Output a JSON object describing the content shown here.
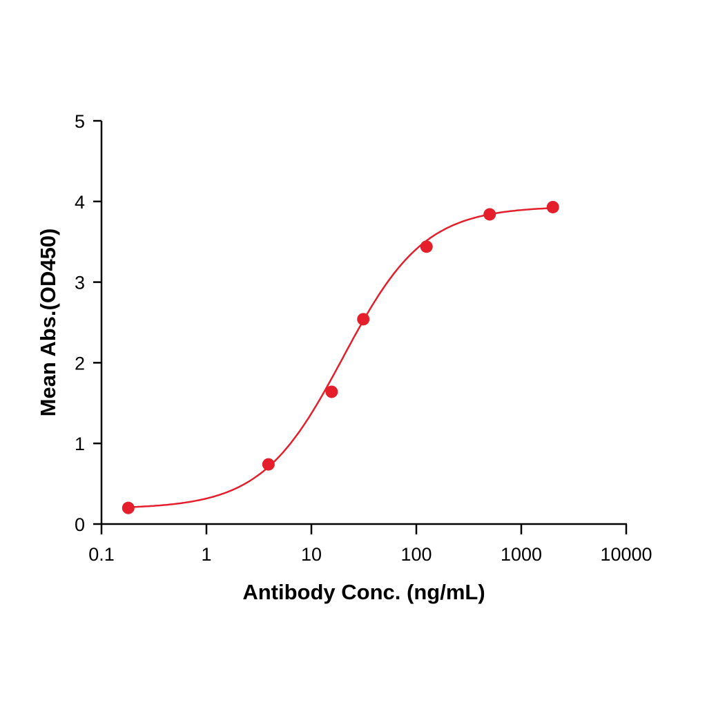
{
  "chart_data": {
    "type": "scatter",
    "title": "",
    "xlabel": "Antibody Conc. (ng/mL)",
    "ylabel": "Mean Abs.(OD450)",
    "x_scale": "log",
    "xlim": [
      0.1,
      10000
    ],
    "ylim": [
      0,
      5
    ],
    "x_ticks": [
      "0.1",
      "1",
      "10",
      "100",
      "1000",
      "10000"
    ],
    "y_ticks": [
      "0",
      "1",
      "2",
      "3",
      "4",
      "5"
    ],
    "grid": false,
    "legend": "none",
    "fit_curve": "4PL sigmoidal",
    "color": "#e41e2b",
    "points": [
      {
        "x": 0.18,
        "y": 0.2
      },
      {
        "x": 3.9,
        "y": 0.74
      },
      {
        "x": 15.6,
        "y": 1.64
      },
      {
        "x": 31.25,
        "y": 2.54
      },
      {
        "x": 125,
        "y": 3.44
      },
      {
        "x": 500,
        "y": 3.84
      },
      {
        "x": 2000,
        "y": 3.93
      }
    ]
  }
}
